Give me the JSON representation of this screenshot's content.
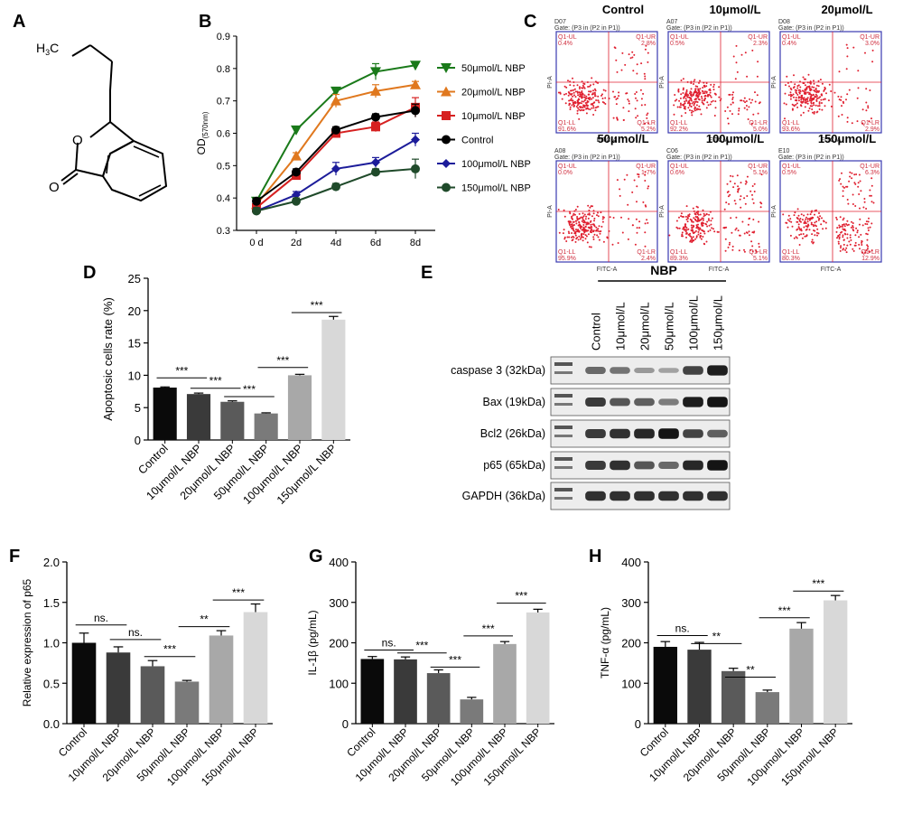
{
  "panel_labels": {
    "A": "A",
    "B": "B",
    "C": "C",
    "D": "D",
    "E": "E",
    "F": "F",
    "G": "G",
    "H": "H"
  },
  "colors": {
    "c50": "#1a7a1a",
    "c20": "#e0781e",
    "c10": "#d62020",
    "ctrl": "#000000",
    "c100": "#1c1c9a",
    "c150": "#1f4a2a"
  },
  "structure": {
    "atoms": [
      "H",
      "3",
      "C",
      "O",
      "O"
    ]
  },
  "chart_data": [
    {
      "id": "B",
      "type": "line",
      "ylabel": "OD",
      "ylabel_sub": "(570nm)",
      "x": [
        "0 d",
        "2d",
        "4d",
        "6d",
        "8d"
      ],
      "ylim": [
        0.3,
        0.9
      ],
      "yticks": [
        "0.3",
        "0.4",
        "0.5",
        "0.6",
        "0.7",
        "0.8",
        "0.9"
      ],
      "series": [
        {
          "name": "50μmol/L NBP",
          "color": "#1a7a1a",
          "marker": "tri-down",
          "values": [
            0.39,
            0.61,
            0.73,
            0.79,
            0.81
          ],
          "err": [
            0.01,
            0.01,
            0.01,
            0.025,
            0.01
          ]
        },
        {
          "name": "20μmol/L NBP",
          "color": "#e0781e",
          "marker": "tri-up",
          "values": [
            0.38,
            0.53,
            0.7,
            0.73,
            0.75
          ],
          "err": [
            0.01,
            0.01,
            0.02,
            0.02,
            0.01
          ]
        },
        {
          "name": "10μmol/L NBP",
          "color": "#d62020",
          "marker": "square",
          "values": [
            0.37,
            0.47,
            0.6,
            0.62,
            0.68
          ],
          "err": [
            0.01,
            0.01,
            0.01,
            0.015,
            0.03
          ]
        },
        {
          "name": "Control",
          "color": "#000000",
          "marker": "circle",
          "values": [
            0.39,
            0.48,
            0.61,
            0.65,
            0.67
          ],
          "err": [
            0.01,
            0.01,
            0.01,
            0.01,
            0.02
          ]
        },
        {
          "name": "100μmol/L NBP",
          "color": "#1c1c9a",
          "marker": "diamond",
          "values": [
            0.36,
            0.41,
            0.49,
            0.51,
            0.58
          ],
          "err": [
            0.01,
            0.01,
            0.02,
            0.015,
            0.02
          ]
        },
        {
          "name": "150μmol/L NBP",
          "color": "#1f4a2a",
          "marker": "circle",
          "values": [
            0.36,
            0.39,
            0.435,
            0.48,
            0.49
          ],
          "err": [
            0.01,
            0.01,
            0.01,
            0.01,
            0.03
          ]
        }
      ]
    },
    {
      "id": "C",
      "type": "scatter",
      "plots": [
        {
          "title": "Control",
          "code": "D07",
          "gate": "Gate: (P3 in (P2 in P1))",
          "ul": "Q1-UL",
          "ul_val": "0.4%",
          "ur": "Q1-UR",
          "ur_val": "2.8%",
          "ll": "Q1-LL",
          "ll_val": "91.6%",
          "lr": "Q1-LR",
          "lr_val": "5.2%"
        },
        {
          "title": "10μmol/L",
          "code": "A07",
          "gate": "Gate: (P3 in (P2 in P1))",
          "ul": "Q1-UL",
          "ul_val": "0.5%",
          "ur": "Q1-UR",
          "ur_val": "2.3%",
          "ll": "Q1-LL",
          "ll_val": "92.2%",
          "lr": "Q1-LR",
          "lr_val": "5.0%"
        },
        {
          "title": "20μmol/L",
          "code": "D08",
          "gate": "Gate: (P3 in (P2 in P1))",
          "ul": "Q1-UL",
          "ul_val": "0.4%",
          "ur": "Q1-UR",
          "ur_val": "3.0%",
          "ll": "Q1-LL",
          "ll_val": "93.6%",
          "lr": "Q1-LR",
          "lr_val": "2.9%"
        },
        {
          "title": "50μmol/L",
          "code": "A08",
          "gate": "Gate: (P3 in (P2 in P1))",
          "ul": "Q1-UL",
          "ul_val": "0.0%",
          "ur": "Q1-UR",
          "ur_val": "1.7%",
          "ll": "Q1-LL",
          "ll_val": "95.9%",
          "lr": "Q1-LR",
          "lr_val": "2.4%"
        },
        {
          "title": "100μmol/L",
          "code": "C06",
          "gate": "Gate: (P3 in (P2 in P1))",
          "ul": "Q1-UL",
          "ul_val": "0.6%",
          "ur": "Q1-UR",
          "ur_val": "5.1%",
          "ll": "Q1-LL",
          "ll_val": "89.3%",
          "lr": "Q1-LR",
          "lr_val": "5.1%"
        },
        {
          "title": "150μmol/L",
          "code": "E10",
          "gate": "Gate: (P3 in (P2 in P1))",
          "ul": "Q1-UL",
          "ul_val": "0.5%",
          "ur": "Q1-UR",
          "ur_val": "6.3%",
          "ll": "Q1-LL",
          "ll_val": "80.3%",
          "lr": "Q1-LR",
          "lr_val": "12.9%"
        }
      ],
      "xaxis_label": "FITC-A",
      "yaxis_label": "PI-A"
    },
    {
      "id": "D",
      "type": "bar",
      "ylabel": "Apoptosic cells rate (%)",
      "ylim": [
        0,
        25
      ],
      "yticks": [
        "0",
        "5",
        "10",
        "15",
        "20",
        "25"
      ],
      "categories": [
        "Control",
        "10μmol/L NBP",
        "20μmol/L NBP",
        "50μmol/L NBP",
        "100μmol/L NBP",
        "150μmol/L NBP"
      ],
      "values": [
        8.1,
        7.1,
        5.9,
        4.1,
        10.0,
        18.6
      ],
      "err": [
        0.1,
        0.15,
        0.15,
        0.1,
        0.15,
        0.5
      ],
      "bar_colors": [
        "#0a0a0a",
        "#3a3a3a",
        "#5a5a5a",
        "#7a7a7a",
        "#a8a8a8",
        "#d8d8d8"
      ],
      "sig": [
        {
          "a": 0,
          "b": 1,
          "label": "***",
          "y": 9.6
        },
        {
          "a": 1,
          "b": 2,
          "label": "***",
          "y": 8.0
        },
        {
          "a": 2,
          "b": 3,
          "label": "***",
          "y": 6.7
        },
        {
          "a": 3,
          "b": 4,
          "label": "***",
          "y": 11.2
        },
        {
          "a": 4,
          "b": 5,
          "label": "***",
          "y": 19.7
        }
      ]
    },
    {
      "id": "E",
      "type": "table",
      "group_label": "NBP",
      "lanes": [
        "Control",
        "10μmol/L",
        "20μmol/L",
        "50μmol/L",
        "100μmol/L",
        "150μmol/L"
      ],
      "rows": [
        {
          "label": "caspase 3  (32kDa)",
          "intensity": [
            0.5,
            0.45,
            0.25,
            0.2,
            0.7,
            0.9
          ]
        },
        {
          "label": "Bax  (19kDa)",
          "intensity": [
            0.75,
            0.6,
            0.55,
            0.4,
            0.9,
            0.95
          ]
        },
        {
          "label": "Bcl2 (26kDa)",
          "intensity": [
            0.75,
            0.8,
            0.85,
            0.95,
            0.7,
            0.55
          ]
        },
        {
          "label": "p65 (65kDa)",
          "intensity": [
            0.75,
            0.8,
            0.6,
            0.5,
            0.85,
            0.95
          ]
        },
        {
          "label": "GAPDH (36kDa)",
          "intensity": [
            0.8,
            0.8,
            0.8,
            0.8,
            0.8,
            0.8
          ]
        }
      ]
    },
    {
      "id": "F",
      "type": "bar",
      "ylabel": "Relative expression of p65",
      "ylim": [
        0,
        2.0
      ],
      "yticks": [
        "0.0",
        "0.5",
        "1.0",
        "1.5",
        "2.0"
      ],
      "categories": [
        "Control",
        "10μmol/L NBP",
        "20μmol/L NBP",
        "50μmol/L NBP",
        "100μmol/L NBP",
        "150μmol/L NBP"
      ],
      "values": [
        1.0,
        0.88,
        0.71,
        0.52,
        1.09,
        1.38
      ],
      "err": [
        0.12,
        0.07,
        0.07,
        0.015,
        0.06,
        0.1
      ],
      "bar_colors": [
        "#0a0a0a",
        "#3a3a3a",
        "#5a5a5a",
        "#7a7a7a",
        "#a8a8a8",
        "#d8d8d8"
      ],
      "sig": [
        {
          "a": 0,
          "b": 1,
          "label": "ns.",
          "y": 1.22
        },
        {
          "a": 1,
          "b": 2,
          "label": "ns.",
          "y": 1.04
        },
        {
          "a": 2,
          "b": 3,
          "label": "***",
          "y": 0.83
        },
        {
          "a": 3,
          "b": 4,
          "label": "**",
          "y": 1.2
        },
        {
          "a": 4,
          "b": 5,
          "label": "***",
          "y": 1.53
        }
      ]
    },
    {
      "id": "G",
      "type": "bar",
      "ylabel": "IL-1β (pg/mL)",
      "ylim": [
        0,
        400
      ],
      "yticks": [
        "0",
        "100",
        "200",
        "300",
        "400"
      ],
      "categories": [
        "Control",
        "10μmol/L NBP",
        "20μmol/L NBP",
        "50μmol/L NBP",
        "100μmol/L NBP",
        "150μmol/L NBP"
      ],
      "values": [
        160,
        159,
        125,
        60,
        197,
        275
      ],
      "err": [
        6,
        6,
        8,
        5,
        6,
        8
      ],
      "bar_colors": [
        "#0a0a0a",
        "#3a3a3a",
        "#5a5a5a",
        "#7a7a7a",
        "#a8a8a8",
        "#d8d8d8"
      ],
      "sig": [
        {
          "a": 0,
          "b": 1,
          "label": "ns.",
          "y": 182
        },
        {
          "a": 1,
          "b": 2,
          "label": "***",
          "y": 175
        },
        {
          "a": 2,
          "b": 3,
          "label": "***",
          "y": 140
        },
        {
          "a": 3,
          "b": 4,
          "label": "***",
          "y": 217
        },
        {
          "a": 4,
          "b": 5,
          "label": "***",
          "y": 298
        }
      ]
    },
    {
      "id": "H",
      "type": "bar",
      "ylabel": "TNF-α (pg/mL)",
      "ylim": [
        0,
        400
      ],
      "yticks": [
        "0",
        "100",
        "200",
        "300",
        "400"
      ],
      "categories": [
        "Control",
        "10μmol/L NBP",
        "20μmol/L NBP",
        "50μmol/L NBP",
        "100μmol/L NBP",
        "150μmol/L NBP"
      ],
      "values": [
        190,
        183,
        130,
        78,
        235,
        305
      ],
      "err": [
        13,
        18,
        7,
        5,
        15,
        12
      ],
      "bar_colors": [
        "#0a0a0a",
        "#3a3a3a",
        "#5a5a5a",
        "#7a7a7a",
        "#a8a8a8",
        "#d8d8d8"
      ],
      "sig": [
        {
          "a": 0,
          "b": 1,
          "label": "ns.",
          "y": 218
        },
        {
          "a": 1,
          "b": 2,
          "label": "**",
          "y": 198
        },
        {
          "a": 2,
          "b": 3,
          "label": "**",
          "y": 115
        },
        {
          "a": 3,
          "b": 4,
          "label": "***",
          "y": 262
        },
        {
          "a": 4,
          "b": 5,
          "label": "***",
          "y": 328
        }
      ]
    }
  ]
}
